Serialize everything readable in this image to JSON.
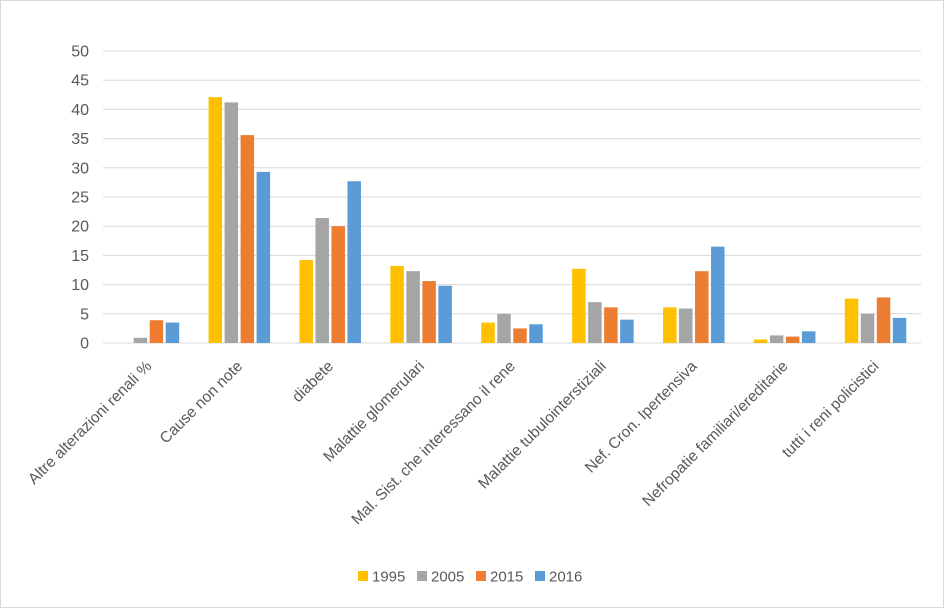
{
  "chart_data": {
    "type": "bar",
    "title": "",
    "xlabel": "",
    "ylabel": "",
    "ylim": [
      0,
      50
    ],
    "yticks": [
      0,
      5,
      10,
      15,
      20,
      25,
      30,
      35,
      40,
      45,
      50
    ],
    "grid": true,
    "legend_position": "bottom",
    "categories": [
      "Altre alterazioni renali %",
      "Cause non note",
      "diabete",
      "Malattie glomerulari",
      "Mal. Sist. che interessano il rene",
      "Malattie tubulointerstiziali",
      "Nef. Cron. Ipertensiva",
      "Nefropatie familiari/ereditarie",
      "tutti i reni policistici"
    ],
    "series": [
      {
        "name": "1995",
        "color": "#FFC000",
        "values": [
          0,
          42.1,
          14.2,
          13.2,
          3.5,
          12.7,
          6.1,
          0.6,
          7.6
        ]
      },
      {
        "name": "2005",
        "color": "#A5A5A5",
        "values": [
          0.9,
          41.2,
          21.4,
          12.3,
          5.0,
          7.0,
          5.9,
          1.3,
          5.0
        ]
      },
      {
        "name": "2015",
        "color": "#ED7D31",
        "values": [
          3.9,
          35.6,
          20.0,
          10.6,
          2.5,
          6.1,
          12.3,
          1.1,
          7.8
        ]
      },
      {
        "name": "2016",
        "color": "#5B9BD5",
        "values": [
          3.5,
          29.3,
          27.7,
          9.8,
          3.2,
          4.0,
          16.5,
          2.0,
          4.3
        ]
      }
    ]
  }
}
